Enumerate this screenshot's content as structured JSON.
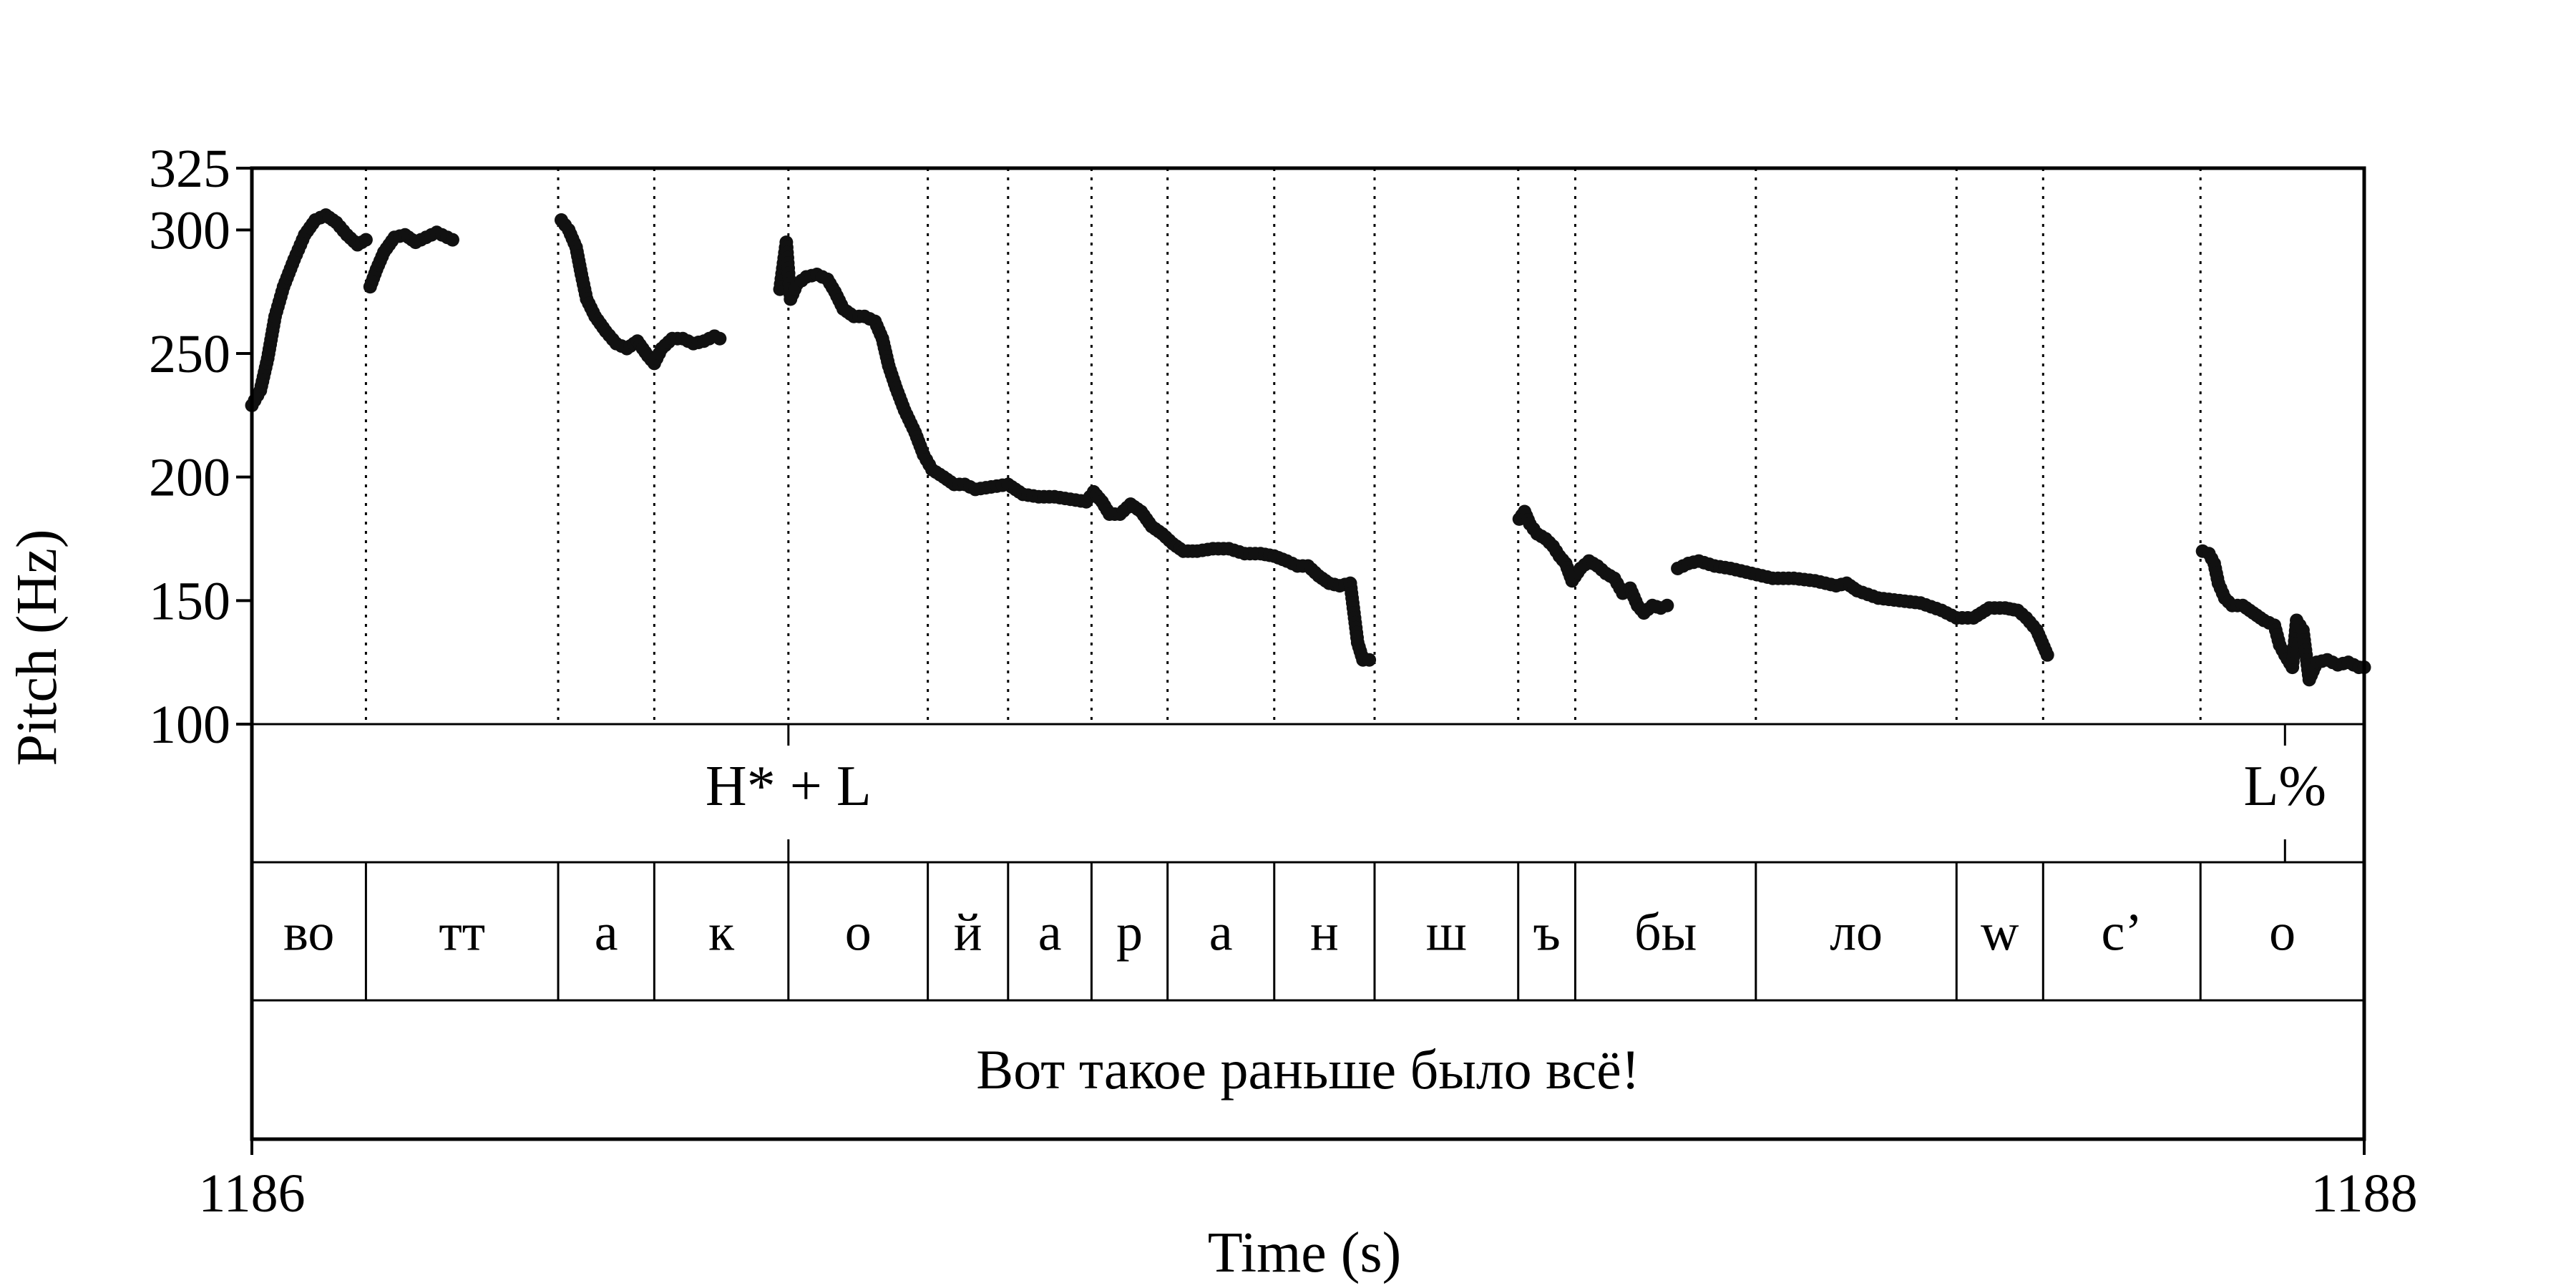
{
  "chart_data": {
    "type": "scatter",
    "ylabel": "Pitch (Hz)",
    "xlabel": "Time (s)",
    "xlim": [
      1186,
      1188
    ],
    "ylim": [
      100,
      325
    ],
    "yticks": [
      100,
      150,
      200,
      250,
      300,
      325
    ],
    "xticks": [
      1186,
      1188
    ],
    "grid": false,
    "colors": {
      "points": "#111111",
      "frame": "#000000",
      "boundary": "#000000"
    },
    "segments": [
      {
        "label": "во",
        "start": 1186.0,
        "end": 1186.108
      },
      {
        "label": "тт",
        "start": 1186.108,
        "end": 1186.29
      },
      {
        "label": "а",
        "start": 1186.29,
        "end": 1186.381
      },
      {
        "label": "к",
        "start": 1186.381,
        "end": 1186.508
      },
      {
        "label": "о",
        "start": 1186.508,
        "end": 1186.64
      },
      {
        "label": "й",
        "start": 1186.64,
        "end": 1186.716
      },
      {
        "label": "а",
        "start": 1186.716,
        "end": 1186.795
      },
      {
        "label": "р",
        "start": 1186.795,
        "end": 1186.867
      },
      {
        "label": "а",
        "start": 1186.867,
        "end": 1186.968
      },
      {
        "label": "н",
        "start": 1186.968,
        "end": 1187.063
      },
      {
        "label": "ш",
        "start": 1187.063,
        "end": 1187.199
      },
      {
        "label": "ъ",
        "start": 1187.199,
        "end": 1187.253
      },
      {
        "label": "бы",
        "start": 1187.253,
        "end": 1187.424
      },
      {
        "label": "ло",
        "start": 1187.424,
        "end": 1187.614
      },
      {
        "label": "w",
        "start": 1187.614,
        "end": 1187.696
      },
      {
        "label": "c’",
        "start": 1187.696,
        "end": 1187.845
      },
      {
        "label": "o",
        "start": 1187.845,
        "end": 1188.0
      }
    ],
    "tones": [
      {
        "label": "H* + L",
        "time": 1186.508
      },
      {
        "label": "L%",
        "time": 1187.925
      }
    ],
    "sentence": "Вот такое раньше было всё!",
    "contour": [
      {
        "points": [
          [
            1186.0,
            229
          ],
          [
            1186.008,
            235
          ],
          [
            1186.015,
            248
          ],
          [
            1186.022,
            265
          ],
          [
            1186.03,
            277
          ],
          [
            1186.04,
            288
          ],
          [
            1186.05,
            298
          ],
          [
            1186.06,
            304
          ],
          [
            1186.07,
            306
          ],
          [
            1186.08,
            303
          ],
          [
            1186.09,
            298
          ],
          [
            1186.1,
            294
          ],
          [
            1186.108,
            296
          ]
        ]
      },
      {
        "points": [
          [
            1186.112,
            277
          ],
          [
            1186.118,
            284
          ],
          [
            1186.125,
            291
          ],
          [
            1186.135,
            297
          ],
          [
            1186.145,
            298
          ],
          [
            1186.155,
            295
          ],
          [
            1186.165,
            297
          ],
          [
            1186.175,
            299
          ],
          [
            1186.185,
            297
          ],
          [
            1186.19,
            296
          ]
        ]
      },
      {
        "points": [
          [
            1186.293,
            304
          ],
          [
            1186.3,
            300
          ],
          [
            1186.307,
            293
          ],
          [
            1186.312,
            282
          ],
          [
            1186.317,
            272
          ],
          [
            1186.325,
            265
          ],
          [
            1186.335,
            259
          ],
          [
            1186.345,
            254
          ],
          [
            1186.355,
            252
          ],
          [
            1186.365,
            255
          ],
          [
            1186.375,
            249
          ],
          [
            1186.381,
            246
          ],
          [
            1186.388,
            252
          ],
          [
            1186.398,
            256
          ],
          [
            1186.408,
            256
          ],
          [
            1186.418,
            254
          ],
          [
            1186.428,
            255
          ],
          [
            1186.438,
            257
          ],
          [
            1186.443,
            256
          ]
        ]
      },
      {
        "points": [
          [
            1186.5,
            276
          ],
          [
            1186.506,
            295
          ],
          [
            1186.51,
            272
          ],
          [
            1186.516,
            278
          ],
          [
            1186.525,
            281
          ],
          [
            1186.535,
            282
          ],
          [
            1186.545,
            280
          ],
          [
            1186.552,
            275
          ],
          [
            1186.56,
            268
          ],
          [
            1186.57,
            265
          ],
          [
            1186.58,
            265
          ],
          [
            1186.59,
            263
          ],
          [
            1186.597,
            256
          ],
          [
            1186.603,
            245
          ],
          [
            1186.61,
            236
          ],
          [
            1186.618,
            227
          ],
          [
            1186.628,
            218
          ],
          [
            1186.636,
            209
          ],
          [
            1186.644,
            203
          ],
          [
            1186.655,
            200
          ],
          [
            1186.665,
            197
          ],
          [
            1186.675,
            197
          ],
          [
            1186.685,
            195
          ],
          [
            1186.7,
            196
          ],
          [
            1186.716,
            197
          ],
          [
            1186.73,
            193
          ],
          [
            1186.745,
            192
          ],
          [
            1186.76,
            192
          ],
          [
            1186.775,
            191
          ],
          [
            1186.79,
            190
          ],
          [
            1186.797,
            194
          ],
          [
            1186.805,
            190
          ],
          [
            1186.812,
            185
          ],
          [
            1186.822,
            185
          ],
          [
            1186.832,
            189
          ],
          [
            1186.842,
            186
          ],
          [
            1186.852,
            180
          ],
          [
            1186.862,
            177
          ],
          [
            1186.872,
            173
          ],
          [
            1186.882,
            170
          ],
          [
            1186.895,
            170
          ],
          [
            1186.91,
            171
          ],
          [
            1186.925,
            171
          ],
          [
            1186.94,
            169
          ],
          [
            1186.955,
            169
          ],
          [
            1186.968,
            168
          ],
          [
            1186.98,
            166
          ],
          [
            1186.99,
            164
          ],
          [
            1187.0,
            164
          ],
          [
            1187.01,
            160
          ],
          [
            1187.02,
            157
          ],
          [
            1187.03,
            156
          ],
          [
            1187.04,
            157
          ],
          [
            1187.047,
            133
          ],
          [
            1187.052,
            126
          ],
          [
            1187.058,
            126
          ]
        ]
      },
      {
        "points": [
          [
            1187.2,
            183
          ],
          [
            1187.205,
            186
          ],
          [
            1187.21,
            181
          ],
          [
            1187.217,
            177
          ],
          [
            1187.225,
            175
          ],
          [
            1187.232,
            172
          ],
          [
            1187.238,
            168
          ],
          [
            1187.244,
            165
          ],
          [
            1187.25,
            158
          ],
          [
            1187.258,
            163
          ],
          [
            1187.266,
            166
          ],
          [
            1187.274,
            164
          ],
          [
            1187.282,
            161
          ],
          [
            1187.29,
            159
          ],
          [
            1187.298,
            153
          ],
          [
            1187.305,
            155
          ],
          [
            1187.312,
            148
          ],
          [
            1187.318,
            145
          ],
          [
            1187.326,
            148
          ],
          [
            1187.334,
            147
          ],
          [
            1187.34,
            148
          ]
        ]
      },
      {
        "points": [
          [
            1187.35,
            163
          ],
          [
            1187.36,
            165
          ],
          [
            1187.37,
            166
          ],
          [
            1187.385,
            164
          ],
          [
            1187.4,
            163
          ],
          [
            1187.42,
            161
          ],
          [
            1187.44,
            159
          ],
          [
            1187.46,
            159
          ],
          [
            1187.48,
            158
          ],
          [
            1187.5,
            156
          ],
          [
            1187.51,
            157
          ],
          [
            1187.52,
            154
          ],
          [
            1187.54,
            151
          ],
          [
            1187.56,
            150
          ],
          [
            1187.58,
            149
          ],
          [
            1187.6,
            146
          ],
          [
            1187.614,
            143
          ],
          [
            1187.63,
            143
          ],
          [
            1187.645,
            147
          ],
          [
            1187.66,
            147
          ],
          [
            1187.672,
            146
          ],
          [
            1187.68,
            143
          ],
          [
            1187.69,
            138
          ],
          [
            1187.695,
            133
          ],
          [
            1187.7,
            128
          ]
        ]
      },
      {
        "points": [
          [
            1187.847,
            170
          ],
          [
            1187.853,
            169
          ],
          [
            1187.858,
            165
          ],
          [
            1187.862,
            157
          ],
          [
            1187.868,
            151
          ],
          [
            1187.875,
            148
          ],
          [
            1187.885,
            148
          ],
          [
            1187.895,
            145
          ],
          [
            1187.905,
            142
          ],
          [
            1187.915,
            140
          ],
          [
            1187.92,
            132
          ],
          [
            1187.925,
            128
          ],
          [
            1187.932,
            123
          ],
          [
            1187.936,
            142
          ],
          [
            1187.942,
            138
          ],
          [
            1187.948,
            118
          ],
          [
            1187.955,
            125
          ],
          [
            1187.965,
            126
          ],
          [
            1187.975,
            124
          ],
          [
            1187.985,
            125
          ],
          [
            1187.995,
            123
          ],
          [
            1188.0,
            123
          ]
        ]
      }
    ]
  }
}
